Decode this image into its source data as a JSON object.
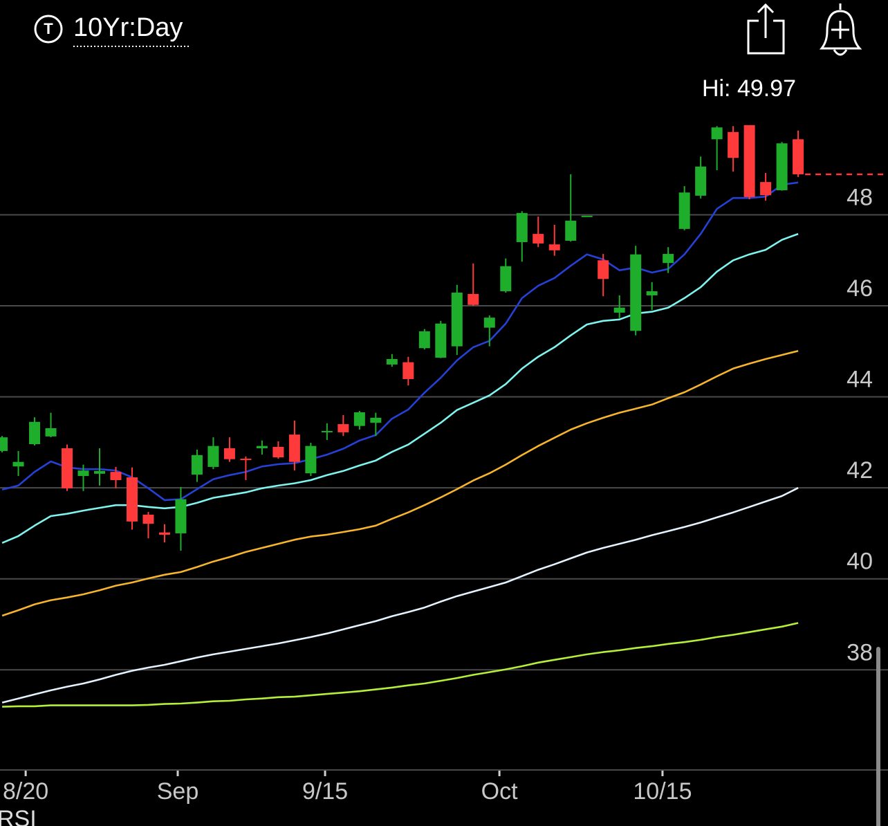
{
  "header": {
    "symbol_icon": "T",
    "title": "10Yr:Day"
  },
  "lower_panel": "RSI",
  "chart_data": {
    "type": "candlestick",
    "annotation": {
      "label": "Hi:",
      "value": 49.97
    },
    "up_color": "#1fae2b",
    "down_color": "#ff3a3a",
    "xlim": [
      -0.13,
      54.53
    ],
    "xticks": [
      {
        "value": 1.45,
        "label": "8/20"
      },
      {
        "value": 10.81,
        "label": "Sep"
      },
      {
        "value": 19.88,
        "label": "9/15"
      },
      {
        "value": 30.61,
        "label": "Oct"
      },
      {
        "value": 40.65,
        "label": "10/15"
      }
    ],
    "ylim": [
      35.8,
      51.2
    ],
    "yticks": [
      38,
      40,
      42,
      44,
      46,
      48
    ],
    "grid": true,
    "open": [
      42.81,
      42.47,
      42.96,
      43.13,
      42.87,
      42.26,
      42.31,
      42.35,
      42.23,
      41.41,
      41.02,
      41.0,
      42.29,
      42.46,
      42.87,
      42.64,
      42.87,
      42.9,
      43.17,
      42.32,
      43.22,
      43.4,
      43.36,
      43.43,
      44.71,
      44.76,
      45.07,
      44.86,
      45.11,
      46.26,
      45.52,
      46.32,
      47.4,
      47.58,
      47.35,
      47.43,
      47.98,
      47.0,
      45.85,
      45.45,
      46.23,
      46.94,
      47.69,
      48.42,
      49.66,
      49.82,
      49.97,
      48.72,
      48.54,
      49.66
    ],
    "high": [
      43.14,
      42.81,
      43.55,
      43.65,
      42.95,
      42.51,
      42.87,
      42.46,
      42.45,
      41.47,
      41.2,
      42.02,
      42.84,
      43.11,
      43.11,
      42.69,
      43.04,
      43.02,
      43.48,
      42.99,
      43.42,
      43.6,
      43.69,
      43.65,
      44.94,
      44.88,
      45.49,
      45.67,
      46.46,
      46.93,
      45.79,
      47.04,
      48.08,
      47.96,
      47.78,
      48.89,
      47.98,
      47.14,
      46.23,
      47.32,
      46.52,
      47.29,
      48.63,
      49.28,
      49.95,
      49.95,
      49.97,
      48.92,
      49.6,
      49.85
    ],
    "low": [
      42.78,
      42.26,
      42.93,
      43.11,
      41.93,
      41.93,
      42.05,
      41.99,
      41.08,
      40.89,
      40.8,
      40.62,
      42.13,
      42.41,
      42.57,
      42.17,
      42.73,
      42.64,
      42.38,
      42.26,
      43.05,
      43.14,
      43.28,
      43.14,
      44.66,
      44.25,
      45.04,
      44.85,
      44.92,
      46.0,
      45.11,
      46.29,
      46.97,
      47.29,
      47.1,
      47.41,
      47.98,
      46.21,
      45.73,
      45.35,
      45.91,
      46.72,
      47.66,
      48.36,
      48.98,
      48.95,
      48.34,
      48.31,
      48.53,
      48.83
    ],
    "close": [
      43.11,
      42.57,
      43.45,
      43.31,
      41.99,
      42.38,
      42.37,
      42.17,
      41.26,
      41.21,
      40.97,
      41.75,
      42.72,
      42.92,
      42.63,
      42.61,
      42.92,
      42.67,
      42.57,
      42.92,
      43.25,
      43.22,
      43.66,
      43.54,
      44.83,
      44.39,
      45.44,
      45.61,
      46.29,
      46.02,
      45.74,
      46.87,
      48.04,
      47.37,
      47.22,
      47.87,
      47.98,
      46.59,
      45.96,
      47.13,
      46.32,
      47.14,
      48.49,
      49.06,
      49.92,
      49.25,
      48.39,
      48.43,
      49.57,
      48.89
    ],
    "series": [
      {
        "color": "#2541d6",
        "values": [
          41.96,
          42.05,
          42.35,
          42.58,
          42.45,
          42.41,
          42.41,
          42.38,
          42.23,
          41.99,
          41.73,
          41.75,
          41.97,
          42.19,
          42.28,
          42.35,
          42.47,
          42.52,
          42.54,
          42.63,
          42.73,
          42.86,
          43.04,
          43.16,
          43.52,
          43.72,
          44.09,
          44.42,
          44.8,
          45.09,
          45.23,
          45.61,
          46.17,
          46.44,
          46.61,
          46.88,
          47.13,
          47.02,
          46.78,
          46.84,
          46.73,
          46.81,
          47.13,
          47.58,
          48.13,
          48.37,
          48.37,
          48.4,
          48.66,
          48.71
        ]
      },
      {
        "color": "#7ff4ef",
        "values": [
          40.79,
          40.94,
          41.17,
          41.38,
          41.43,
          41.5,
          41.56,
          41.62,
          41.62,
          41.58,
          41.55,
          41.58,
          41.67,
          41.78,
          41.84,
          41.9,
          41.99,
          42.05,
          42.1,
          42.17,
          42.28,
          42.37,
          42.49,
          42.6,
          42.79,
          42.95,
          43.19,
          43.43,
          43.71,
          43.87,
          44.03,
          44.28,
          44.62,
          44.88,
          45.09,
          45.35,
          45.59,
          45.67,
          45.7,
          45.83,
          45.87,
          45.96,
          46.17,
          46.41,
          46.75,
          47.0,
          47.13,
          47.23,
          47.45,
          47.58
        ]
      },
      {
        "color": "#f6b52c",
        "values": [
          39.19,
          39.31,
          39.44,
          39.53,
          39.59,
          39.66,
          39.75,
          39.85,
          39.92,
          40.01,
          40.09,
          40.15,
          40.26,
          40.38,
          40.48,
          40.59,
          40.68,
          40.77,
          40.86,
          40.93,
          40.97,
          41.03,
          41.09,
          41.17,
          41.32,
          41.46,
          41.62,
          41.79,
          41.97,
          42.16,
          42.32,
          42.51,
          42.72,
          42.92,
          43.1,
          43.28,
          43.42,
          43.54,
          43.65,
          43.74,
          43.83,
          43.97,
          44.1,
          44.27,
          44.45,
          44.62,
          44.73,
          44.83,
          44.92,
          45.01
        ]
      },
      {
        "color": "#e4f3ff",
        "values": [
          37.28,
          37.37,
          37.46,
          37.55,
          37.63,
          37.7,
          37.79,
          37.89,
          37.98,
          38.05,
          38.11,
          38.19,
          38.27,
          38.34,
          38.4,
          38.46,
          38.52,
          38.58,
          38.65,
          38.72,
          38.8,
          38.89,
          38.98,
          39.07,
          39.18,
          39.27,
          39.37,
          39.5,
          39.62,
          39.72,
          39.82,
          39.92,
          40.06,
          40.2,
          40.32,
          40.45,
          40.58,
          40.68,
          40.77,
          40.86,
          40.96,
          41.05,
          41.14,
          41.24,
          41.35,
          41.46,
          41.58,
          41.7,
          41.82,
          42.0
        ]
      },
      {
        "color": "#b4f03a",
        "values": [
          37.19,
          37.2,
          37.2,
          37.22,
          37.22,
          37.22,
          37.22,
          37.22,
          37.22,
          37.23,
          37.25,
          37.26,
          37.28,
          37.31,
          37.32,
          37.35,
          37.37,
          37.4,
          37.41,
          37.44,
          37.47,
          37.5,
          37.53,
          37.57,
          37.61,
          37.66,
          37.7,
          37.76,
          37.82,
          37.89,
          37.95,
          38.01,
          38.08,
          38.16,
          38.22,
          38.28,
          38.34,
          38.39,
          38.43,
          38.48,
          38.52,
          38.57,
          38.61,
          38.66,
          38.72,
          38.77,
          38.83,
          38.89,
          38.95,
          39.03
        ]
      }
    ]
  }
}
